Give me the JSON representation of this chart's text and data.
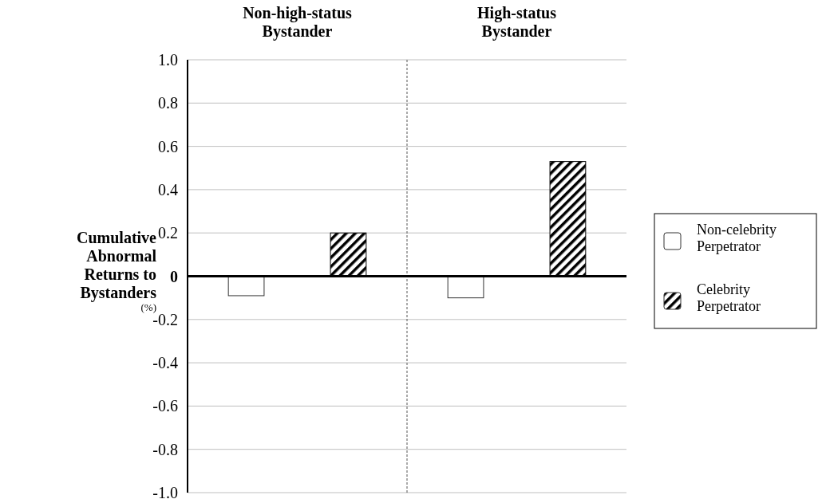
{
  "chart_data": {
    "type": "bar",
    "ylabel": "Cumulative Abnormal Returns to Bystanders $_{(%)}$",
    "categories": [
      "Non-high-status Bystander",
      "High-status Bystander"
    ],
    "series": [
      {
        "name": "Non-celebrity Perpetrator",
        "color": "#ffffff",
        "values": [
          -0.09,
          -0.1
        ]
      },
      {
        "name": "Celebrity Perpetrator",
        "color": "#000000",
        "values": [
          0.2,
          0.53
        ]
      }
    ],
    "ylim": [
      -1,
      1
    ],
    "yticks": [
      {
        "value": -1,
        "label": "-1.0"
      },
      -0.8,
      -0.6,
      -0.4,
      -0.2,
      0,
      0.2,
      0.4,
      0.6,
      0.8,
      {
        "value": 1,
        "label": "1.0"
      }
    ],
    "grid": "y",
    "legend": "right"
  }
}
